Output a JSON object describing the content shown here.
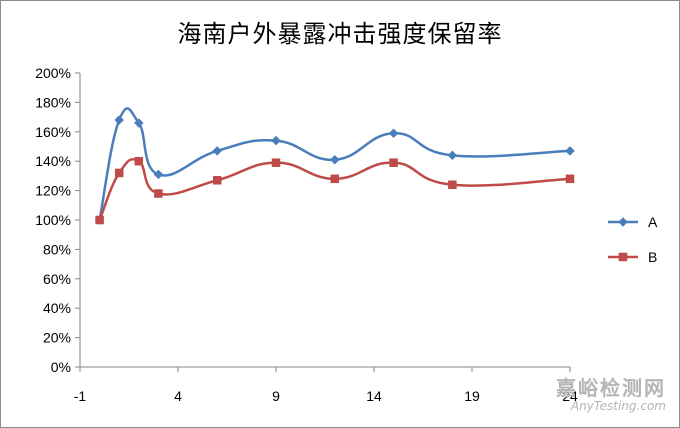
{
  "chart_data": {
    "type": "line",
    "title": "海南户外暴露冲击强度保留率",
    "xlabel": "",
    "ylabel": "",
    "xlim": [
      -1,
      24
    ],
    "xticks": [
      "-1",
      "4",
      "9",
      "14",
      "19",
      "24"
    ],
    "ylim": [
      0,
      200
    ],
    "yticks": [
      "0%",
      "20%",
      "40%",
      "60%",
      "80%",
      "100%",
      "120%",
      "140%",
      "160%",
      "180%",
      "200%"
    ],
    "grid": false,
    "legend_position": "right",
    "series": [
      {
        "name": "A",
        "color": "#4a7ebb",
        "marker": "diamond",
        "x": [
          0,
          1,
          2,
          3,
          6,
          9,
          12,
          15,
          18,
          24
        ],
        "y": [
          100,
          168,
          166,
          131,
          147,
          154,
          141,
          159,
          144,
          147
        ]
      },
      {
        "name": "B",
        "color": "#be4b48",
        "marker": "square",
        "x": [
          0,
          1,
          2,
          3,
          6,
          9,
          12,
          15,
          18,
          24
        ],
        "y": [
          100,
          132,
          140,
          118,
          127,
          139,
          128,
          139,
          124,
          128
        ]
      }
    ]
  },
  "watermark": {
    "cn": "嘉峪检测网",
    "en": "AnyTesting.com"
  }
}
